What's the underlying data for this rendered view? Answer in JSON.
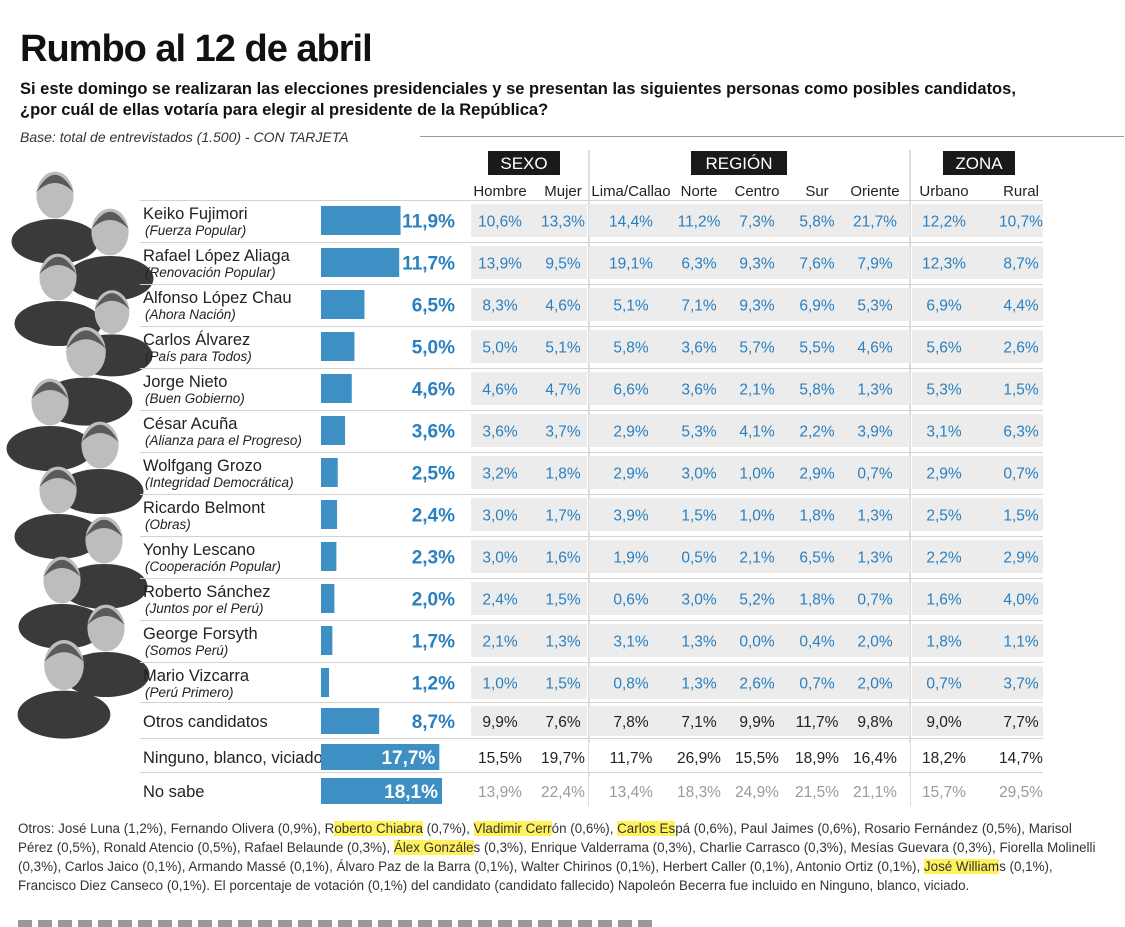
{
  "header": {
    "title": "Rumbo al 12 de abril",
    "question": "Si este domingo se realizaran las elecciones presidenciales y se presentan las siguientes personas como posibles candidatos, ¿por cuál de ellas votaría para elegir al presidente de la República?",
    "base": "Base: total de entrevistados (1.500) - CON TARJETA"
  },
  "colors": {
    "bar": "#3e8fc3",
    "value_text": "#2a7fbf",
    "cell_bg": "#ececec",
    "group_header_bg": "#1a1a1a"
  },
  "chart_data": {
    "type": "table",
    "groups": [
      {
        "label": "SEXO",
        "columns": [
          "Hombre",
          "Mujer"
        ]
      },
      {
        "label": "REGIÓN",
        "columns": [
          "Lima/Callao",
          "Norte",
          "Centro",
          "Sur",
          "Oriente"
        ]
      },
      {
        "label": "ZONA",
        "columns": [
          "Urbano",
          "Rural"
        ]
      }
    ],
    "rows": [
      {
        "name": "Keiko Fujimori",
        "party": "(Fuerza Popular)",
        "total": 11.9,
        "total_label": "11,9%",
        "cells": [
          "10,6%",
          "13,3%",
          "14,4%",
          "11,2%",
          "7,3%",
          "5,8%",
          "21,7%",
          "12,2%",
          "10,7%"
        ]
      },
      {
        "name": "Rafael López Aliaga",
        "party": "(Renovación Popular)",
        "total": 11.7,
        "total_label": "11,7%",
        "cells": [
          "13,9%",
          "9,5%",
          "19,1%",
          "6,3%",
          "9,3%",
          "7,6%",
          "7,9%",
          "12,3%",
          "8,7%"
        ]
      },
      {
        "name": "Alfonso López Chau",
        "party": "(Ahora Nación)",
        "total": 6.5,
        "total_label": "6,5%",
        "cells": [
          "8,3%",
          "4,6%",
          "5,1%",
          "7,1%",
          "9,3%",
          "6,9%",
          "5,3%",
          "6,9%",
          "4,4%"
        ]
      },
      {
        "name": "Carlos Álvarez",
        "party": "(País para Todos)",
        "total": 5.0,
        "total_label": "5,0%",
        "cells": [
          "5,0%",
          "5,1%",
          "5,8%",
          "3,6%",
          "5,7%",
          "5,5%",
          "4,6%",
          "5,6%",
          "2,6%"
        ]
      },
      {
        "name": "Jorge Nieto",
        "party": "(Buen Gobierno)",
        "total": 4.6,
        "total_label": "4,6%",
        "cells": [
          "4,6%",
          "4,7%",
          "6,6%",
          "3,6%",
          "2,1%",
          "5,8%",
          "1,3%",
          "5,3%",
          "1,5%"
        ]
      },
      {
        "name": "César Acuña",
        "party": "(Alianza para el Progreso)",
        "total": 3.6,
        "total_label": "3,6%",
        "cells": [
          "3,6%",
          "3,7%",
          "2,9%",
          "5,3%",
          "4,1%",
          "2,2%",
          "3,9%",
          "3,1%",
          "6,3%"
        ]
      },
      {
        "name": "Wolfgang Grozo",
        "party": "(Integridad Democrática)",
        "total": 2.5,
        "total_label": "2,5%",
        "cells": [
          "3,2%",
          "1,8%",
          "2,9%",
          "3,0%",
          "1,0%",
          "2,9%",
          "0,7%",
          "2,9%",
          "0,7%"
        ]
      },
      {
        "name": "Ricardo Belmont",
        "party": "(Obras)",
        "total": 2.4,
        "total_label": "2,4%",
        "cells": [
          "3,0%",
          "1,7%",
          "3,9%",
          "1,5%",
          "1,0%",
          "1,8%",
          "1,3%",
          "2,5%",
          "1,5%"
        ]
      },
      {
        "name": "Yonhy Lescano",
        "party": "(Cooperación Popular)",
        "total": 2.3,
        "total_label": "2,3%",
        "cells": [
          "3,0%",
          "1,6%",
          "1,9%",
          "0,5%",
          "2,1%",
          "6,5%",
          "1,3%",
          "2,2%",
          "2,9%"
        ]
      },
      {
        "name": "Roberto Sánchez",
        "party": "(Juntos por el Perú)",
        "total": 2.0,
        "total_label": "2,0%",
        "cells": [
          "2,4%",
          "1,5%",
          "0,6%",
          "3,0%",
          "5,2%",
          "1,8%",
          "0,7%",
          "1,6%",
          "4,0%"
        ]
      },
      {
        "name": "George Forsyth",
        "party": "(Somos Perú)",
        "total": 1.7,
        "total_label": "1,7%",
        "cells": [
          "2,1%",
          "1,3%",
          "3,1%",
          "1,3%",
          "0,0%",
          "0,4%",
          "2,0%",
          "1,8%",
          "1,1%"
        ]
      },
      {
        "name": "Mario Vizcarra",
        "party": "(Perú Primero)",
        "total": 1.2,
        "total_label": "1,2%",
        "cells": [
          "1,0%",
          "1,5%",
          "0,8%",
          "1,3%",
          "2,6%",
          "0,7%",
          "2,0%",
          "0,7%",
          "3,7%"
        ]
      },
      {
        "name": "Otros candidatos",
        "party": "",
        "total": 8.7,
        "total_label": "8,7%",
        "cells": [
          "9,9%",
          "7,6%",
          "7,8%",
          "7,1%",
          "9,9%",
          "11,7%",
          "9,8%",
          "9,0%",
          "7,7%"
        ]
      },
      {
        "name": "Ninguno, blanco, viciado",
        "party": "",
        "total": 17.7,
        "total_label": "17,7%",
        "cells": [
          "15,5%",
          "19,7%",
          "11,7%",
          "26,9%",
          "15,5%",
          "18,9%",
          "16,4%",
          "18,2%",
          "14,7%"
        ]
      },
      {
        "name": "No sabe",
        "party": "",
        "total": 18.1,
        "total_label": "18,1%",
        "cells": [
          "13,9%",
          "22,4%",
          "13,4%",
          "18,3%",
          "24,9%",
          "21,5%",
          "21,1%",
          "15,7%",
          "29,5%"
        ]
      }
    ]
  },
  "footnote": [
    {
      "t": "Otros: José Luna (1,2%), Fernando Olivera (0,9%), R"
    },
    {
      "t": "oberto Chiabra",
      "hl": true
    },
    {
      "t": " (0,7%), "
    },
    {
      "t": "Vladimir Cerr",
      "hl": true
    },
    {
      "t": "ón (0,6%), "
    },
    {
      "t": "Carlos Es",
      "hl": true
    },
    {
      "t": "pá (0,6%), Paul Jaimes (0,6%), Rosario Fernández (0,5%), Marisol Pérez (0,5%), Ronald Atencio (0,5%), Rafael Belaunde (0,3%), "
    },
    {
      "t": "Álex Gonzále",
      "hl": true
    },
    {
      "t": "s (0,3%), Enrique Valderrama (0,3%), Charlie Carrasco (0,3%), Mesías Guevara (0,3%), Fiorella Molinelli (0,3%), Carlos Jaico (0,1%), Armando Massé (0,1%), Álvaro Paz de la Barra (0,1%), Walter Chirinos (0,1%), Herbert Caller (0,1%), Antonio Ortiz (0,1%), "
    },
    {
      "t": "José William",
      "hl": true
    },
    {
      "t": "s (0,1%), Francisco Diez Canseco (0,1%).   El porcentaje de votación (0,1%) del candidato (candidato fallecido) Napoleón Becerra fue incluido en Ninguno, blanco, viciado."
    }
  ]
}
